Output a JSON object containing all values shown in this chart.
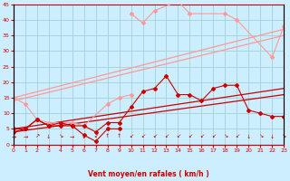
{
  "x": [
    0,
    1,
    2,
    3,
    4,
    5,
    6,
    7,
    8,
    9,
    10,
    11,
    12,
    13,
    14,
    15,
    16,
    17,
    18,
    19,
    20,
    21,
    22,
    23
  ],
  "line_dark1": [
    4,
    5,
    8,
    6,
    6,
    6,
    3,
    1,
    5,
    5,
    null,
    null,
    null,
    null,
    null,
    null,
    null,
    null,
    null,
    null,
    null,
    null,
    null,
    null
  ],
  "line_dark2": [
    5,
    5,
    8,
    6,
    7,
    6,
    6,
    4,
    7,
    7,
    12,
    17,
    18,
    22,
    16,
    16,
    14,
    18,
    19,
    19,
    11,
    10,
    9,
    9
  ],
  "line_light_high": [
    null,
    null,
    null,
    null,
    null,
    null,
    null,
    null,
    null,
    null,
    42,
    39,
    43,
    null,
    46,
    42,
    null,
    null,
    42,
    40,
    null,
    null,
    28,
    38
  ],
  "line_light_low": [
    15,
    13,
    8,
    7,
    7,
    7,
    6,
    null,
    13,
    15,
    16,
    null,
    null,
    null,
    null,
    null,
    null,
    null,
    null,
    null,
    null,
    null,
    null,
    null
  ],
  "trend_light1": [
    15,
    0,
    37
  ],
  "trend_light2": [
    14,
    0,
    35
  ],
  "trend_dark1": [
    5,
    0,
    18
  ],
  "trend_dark2": [
    4,
    0,
    16
  ],
  "arrows": [
    "→",
    "→",
    "↗",
    "↓",
    "↘",
    "→",
    "↓",
    "↙",
    "↑",
    "↑",
    "↙",
    "↙",
    "↙",
    "↙",
    "↙",
    "↙",
    "↙",
    "↙",
    "↘",
    "↙",
    "↓",
    "↘",
    "↓",
    "↘"
  ],
  "bg_color": "#cceeff",
  "grid_color": "#99cccc",
  "line_dark_red": "#cc0000",
  "line_light_red": "#ff9999",
  "xlabel": "Vent moyen/en rafales ( km/h )",
  "ylim": [
    0,
    45
  ],
  "xlim": [
    0,
    23
  ]
}
